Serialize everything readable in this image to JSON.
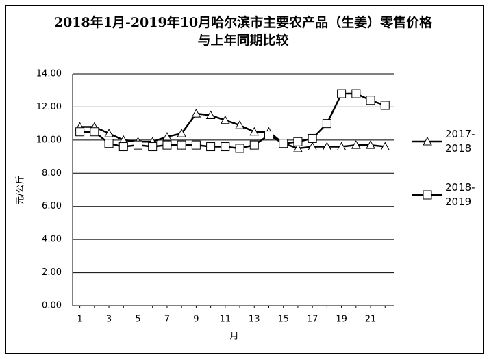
{
  "chart_data": {
    "type": "line",
    "title": "2018年1月-2019年10月哈尔滨市主要农产品（生姜）零售价格与上年同期比较",
    "y_label": "元/公斤",
    "x_label": "月",
    "x": [
      1,
      2,
      3,
      4,
      5,
      6,
      7,
      8,
      9,
      10,
      11,
      12,
      13,
      14,
      15,
      16,
      17,
      18,
      19,
      20,
      21,
      22
    ],
    "xlim": [
      0.5,
      22.6
    ],
    "xticks": [
      1,
      3,
      5,
      7,
      9,
      11,
      13,
      15,
      17,
      19,
      21
    ],
    "ylim": [
      0,
      14
    ],
    "yticks": [
      {
        "value": 0,
        "label": "0.00"
      },
      {
        "value": 2,
        "label": "2.00"
      },
      {
        "value": 4,
        "label": "4.00"
      },
      {
        "value": 6,
        "label": "6.00"
      },
      {
        "value": 8,
        "label": "8.00"
      },
      {
        "value": 10,
        "label": "10.00"
      },
      {
        "value": 12,
        "label": "12.00"
      },
      {
        "value": 14,
        "label": "14.00"
      }
    ],
    "grid": true,
    "legend": "right",
    "series": [
      {
        "name": "2017-2018",
        "color": "#000000",
        "marker": "triangle",
        "values": [
          10.8,
          10.8,
          10.4,
          10.0,
          9.9,
          9.9,
          10.2,
          10.4,
          11.6,
          11.5,
          11.2,
          10.9,
          10.5,
          10.5,
          9.8,
          9.5,
          9.6,
          9.6,
          9.6,
          9.7,
          9.7,
          9.6
        ]
      },
      {
        "name": "2018-2019",
        "color": "#000000",
        "marker": "square",
        "values": [
          10.5,
          10.5,
          9.8,
          9.6,
          9.7,
          9.6,
          9.7,
          9.7,
          9.7,
          9.6,
          9.6,
          9.5,
          9.7,
          10.3,
          9.8,
          9.9,
          10.1,
          11.0,
          12.8,
          12.8,
          12.4,
          12.1
        ]
      }
    ]
  }
}
